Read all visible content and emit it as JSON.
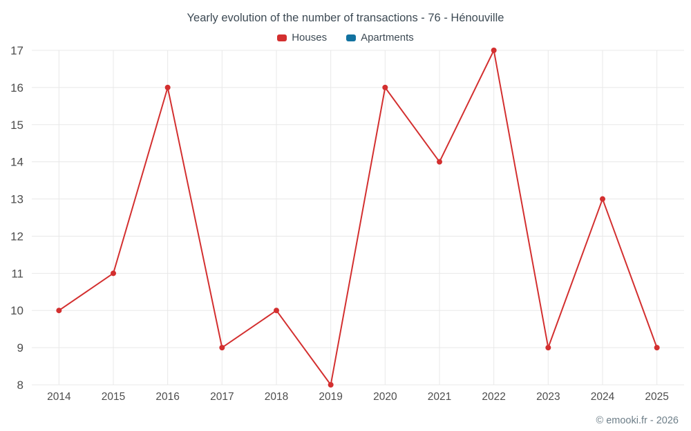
{
  "chart_data": {
    "type": "line",
    "title": "Yearly evolution of the number of transactions - 76 - Hénouville",
    "categories": [
      "2014",
      "2015",
      "2016",
      "2017",
      "2018",
      "2019",
      "2020",
      "2021",
      "2022",
      "2023",
      "2024",
      "2025"
    ],
    "series": [
      {
        "name": "Houses",
        "color": "#d32f2f",
        "values": [
          10,
          11,
          16,
          9,
          10,
          8,
          16,
          14,
          17,
          9,
          13,
          9
        ]
      },
      {
        "name": "Apartments",
        "color": "#1272a0",
        "values": []
      }
    ],
    "xlabel": "",
    "ylabel": "",
    "ylim": [
      8,
      17
    ],
    "yticks": [
      8,
      9,
      10,
      11,
      12,
      13,
      14,
      15,
      16,
      17
    ],
    "grid": true,
    "legend_position": "top",
    "grid_color": "#e8e8e8",
    "tick_color": "#4d4d4d"
  },
  "footer": {
    "copyright": "© emooki.fr - 2026"
  }
}
